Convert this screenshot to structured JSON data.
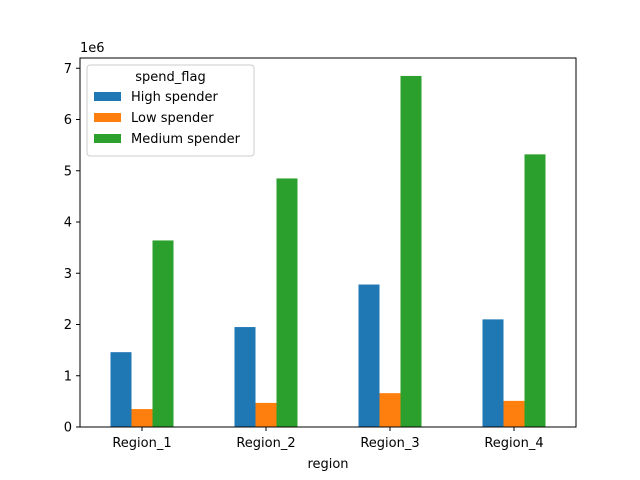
{
  "chart_data": {
    "type": "bar",
    "title": "",
    "xlabel": "region",
    "ylabel": "",
    "y_offset_label": "1e6",
    "categories": [
      "Region_1",
      "Region_2",
      "Region_3",
      "Region_4"
    ],
    "series": [
      {
        "name": "High spender",
        "color": "#1f77b4",
        "values": [
          1460000,
          1950000,
          2780000,
          2100000
        ]
      },
      {
        "name": "Low spender",
        "color": "#ff7f0e",
        "values": [
          350000,
          470000,
          660000,
          510000
        ]
      },
      {
        "name": "Medium spender",
        "color": "#2ca02c",
        "values": [
          3640000,
          4850000,
          6850000,
          5320000
        ]
      }
    ],
    "ylim": [
      0,
      7200000
    ],
    "yticks": [
      0,
      1000000,
      2000000,
      3000000,
      4000000,
      5000000,
      6000000,
      7000000
    ],
    "ytick_labels": [
      "0",
      "1",
      "2",
      "3",
      "4",
      "5",
      "6",
      "7"
    ],
    "legend": {
      "title": "spend_flag",
      "position": "top-left"
    },
    "grid": false
  }
}
